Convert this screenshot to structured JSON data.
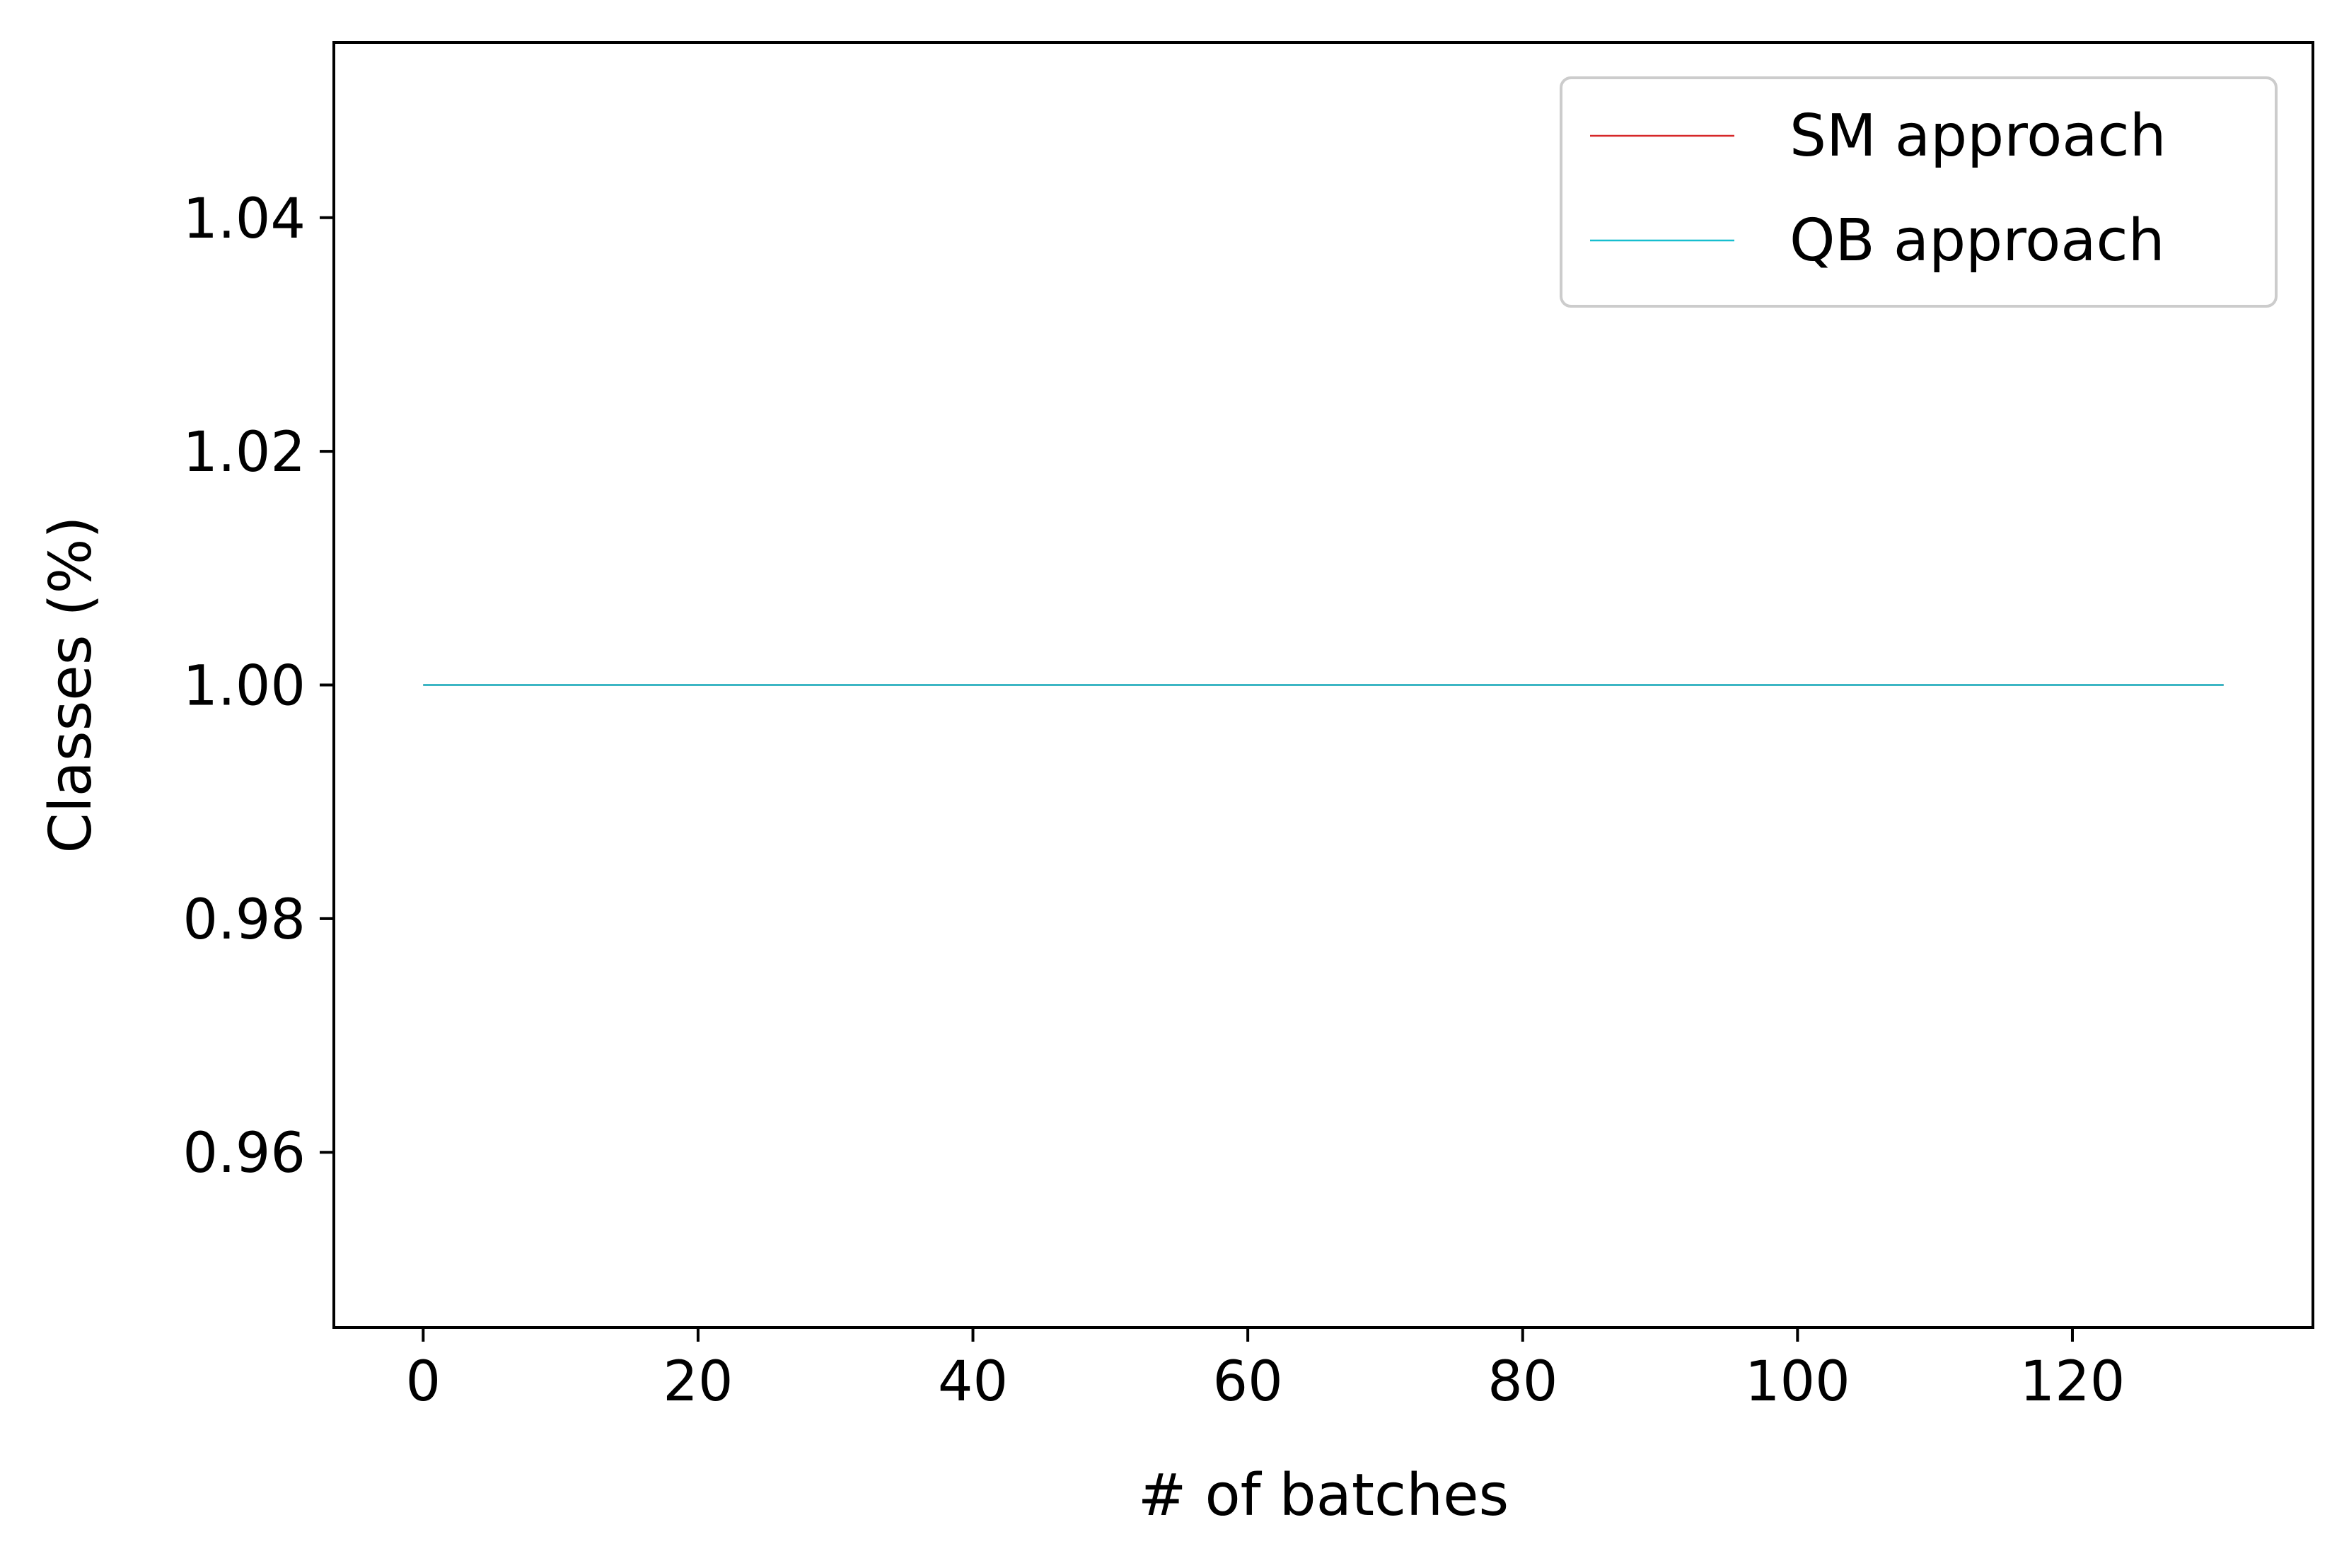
{
  "chart_data": {
    "type": "line",
    "title": "",
    "xlabel": "# of batches",
    "ylabel": "Classes (%)",
    "xlim": [
      -6.5,
      137.5
    ],
    "ylim": [
      0.945,
      1.055
    ],
    "x_ticks": [
      0,
      20,
      40,
      60,
      80,
      100,
      120
    ],
    "x_tick_labels": [
      "0",
      "20",
      "40",
      "60",
      "80",
      "100",
      "120"
    ],
    "y_ticks": [
      0.96,
      0.98,
      1.0,
      1.02,
      1.04
    ],
    "y_tick_labels": [
      "0.96",
      "0.98",
      "1.00",
      "1.02",
      "1.04"
    ],
    "grid": false,
    "legend_position": "top-right",
    "series": [
      {
        "name": "SM approach",
        "color": "#d62728",
        "x": [
          0,
          131
        ],
        "y": [
          1.0,
          1.0
        ]
      },
      {
        "name": "QB approach",
        "color": "#17becf",
        "x": [
          0,
          131
        ],
        "y": [
          1.0,
          1.0
        ]
      }
    ]
  }
}
